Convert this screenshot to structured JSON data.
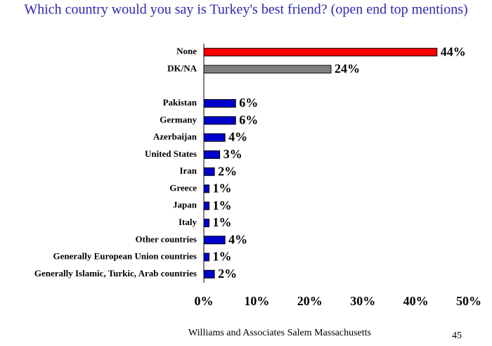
{
  "chart_data": {
    "type": "hbar",
    "title": "Which country would you say is Turkey's best friend? (open end top mentions)",
    "categories": [
      "None",
      "DK/NA",
      null,
      "Pakistan",
      "Germany",
      "Azerbaijan",
      "United States",
      "Iran",
      "Greece",
      "Japan",
      "Italy",
      "Other countries",
      "Generally European Union countries",
      "Generally Islamic, Turkic, Arab countries"
    ],
    "values": [
      44,
      24,
      null,
      6,
      6,
      4,
      3,
      2,
      1,
      1,
      1,
      4,
      1,
      2
    ],
    "value_labels": [
      "44%",
      "24%",
      null,
      "6%",
      "6%",
      "4%",
      "3%",
      "2%",
      "1%",
      "1%",
      "1%",
      "4%",
      "1%",
      "2%"
    ],
    "colors": [
      "#ff0000",
      "#808080",
      null,
      "#0000cc",
      "#0000cc",
      "#0000cc",
      "#0000cc",
      "#0000cc",
      "#0000cc",
      "#0000cc",
      "#0000cc",
      "#0000cc",
      "#0000cc",
      "#0000cc"
    ],
    "xlim": [
      0,
      50
    ],
    "xticks": [
      {
        "value": 0,
        "label": "0%"
      },
      {
        "value": 10,
        "label": "10%"
      },
      {
        "value": 20,
        "label": "20%"
      },
      {
        "value": 30,
        "label": "30%"
      },
      {
        "value": 40,
        "label": "40%"
      },
      {
        "value": 50,
        "label": "50%"
      }
    ],
    "grid": false
  },
  "footer": "Williams and Associates Salem Massachusetts",
  "page_number": "45"
}
